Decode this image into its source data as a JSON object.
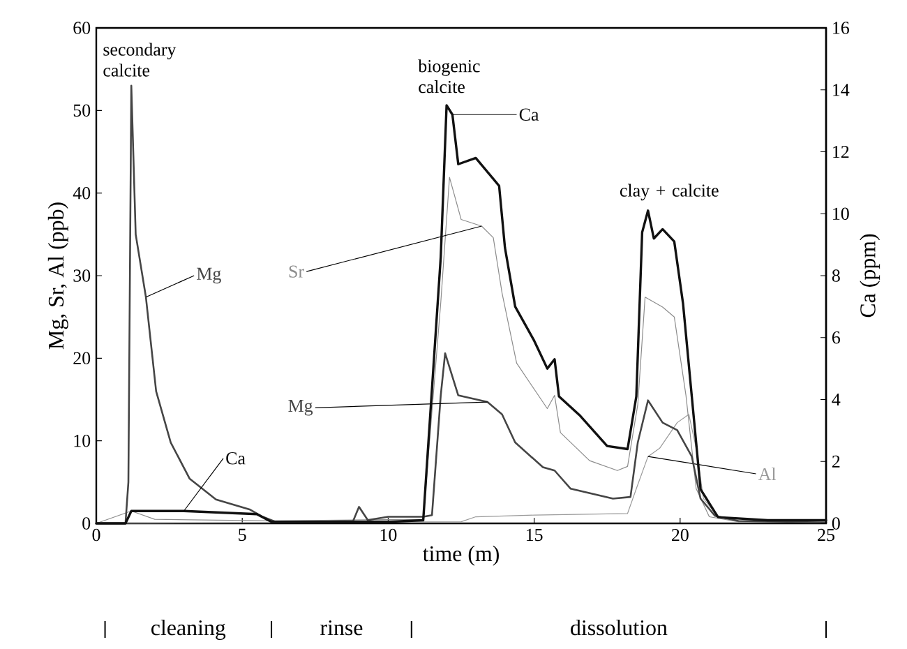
{
  "chart_data": {
    "type": "line",
    "xlabel": "time (m)",
    "ylabel": "Mg, Sr, Al (ppb)",
    "y2label": "Ca (ppm)",
    "xlim": [
      0,
      25
    ],
    "xticks": [
      0,
      5,
      10,
      15,
      20,
      25
    ],
    "ylim": [
      0,
      60
    ],
    "yticks": [
      0,
      10,
      20,
      30,
      40,
      50,
      60
    ],
    "y2lim": [
      0,
      16
    ],
    "y2ticks": [
      0,
      2,
      4,
      6,
      8,
      10,
      12,
      14,
      16
    ],
    "series": [
      {
        "name": "Sr",
        "color": "#8c8c8c",
        "x": [
          0,
          1.2,
          2,
          6,
          11.2,
          11.8,
          12.1,
          12.5,
          13.2,
          13.6,
          13.9,
          14.4,
          15.45,
          15.7,
          15.9,
          16.9,
          17.85,
          18.2,
          18.55,
          18.8,
          19.4,
          19.8,
          20.2,
          20.55,
          21.0,
          22,
          25
        ],
        "values": [
          0,
          1.5,
          0.5,
          0.3,
          0.5,
          26.7,
          41.9,
          36.8,
          36,
          34.6,
          27.9,
          19.4,
          13.9,
          15.5,
          11,
          7.6,
          6.4,
          6.9,
          14.4,
          27.4,
          26.2,
          25,
          15.5,
          4.2,
          0.8,
          0.2,
          0.1
        ]
      },
      {
        "name": "Al",
        "color": "#9a9a9a",
        "x": [
          0,
          12.5,
          13,
          15,
          18.2,
          18.5,
          18.9,
          19.3,
          19.9,
          20.3,
          20.55,
          20.8,
          21.3,
          22,
          25
        ],
        "values": [
          0,
          0.2,
          0.8,
          1,
          1.2,
          4.2,
          8.1,
          9.1,
          12.2,
          13.2,
          9.1,
          3.0,
          0.8,
          0.2,
          0.1
        ]
      },
      {
        "name": "Mg",
        "color": "#454545",
        "x": [
          0,
          1.0,
          1.1,
          1.2,
          1.35,
          1.7,
          2.05,
          2.55,
          3.2,
          4.1,
          5.25,
          5.7,
          6.2,
          8.8,
          9.0,
          9.3,
          10,
          11.2,
          11.5,
          11.8,
          11.95,
          12.4,
          13.4,
          13.9,
          14.35,
          15.3,
          15.7,
          16.25,
          17.7,
          18.3,
          18.55,
          18.9,
          19.4,
          19.9,
          20.4,
          20.7,
          21.2,
          22,
          25
        ],
        "values": [
          0,
          0,
          5,
          53,
          35,
          27.4,
          16,
          9.8,
          5.4,
          2.9,
          1.7,
          0.8,
          0.1,
          0.3,
          2,
          0.4,
          0.8,
          0.8,
          1,
          15.5,
          20.6,
          15.5,
          14.7,
          13.2,
          9.8,
          6.8,
          6.4,
          4.2,
          3.0,
          3.2,
          9.8,
          14.9,
          12.2,
          11.3,
          8.1,
          3.0,
          0.9,
          0.3,
          0.1
        ]
      },
      {
        "name": "Ca",
        "color": "#111111",
        "axis": "y2",
        "x": [
          0,
          1.0,
          1.2,
          1.5,
          3,
          5.5,
          6,
          8,
          10,
          11.2,
          11.8,
          12.0,
          12.2,
          12.4,
          13.0,
          13.8,
          14.0,
          14.35,
          15.0,
          15.45,
          15.7,
          15.85,
          16.55,
          17.5,
          18.2,
          18.5,
          18.7,
          18.9,
          19.1,
          19.4,
          19.8,
          20.1,
          20.4,
          20.7,
          21.3,
          23,
          25
        ],
        "values": [
          0,
          0,
          0.4,
          0.4,
          0.4,
          0.3,
          0.05,
          0.05,
          0.05,
          0.1,
          8.6,
          13.5,
          13.2,
          11.6,
          11.8,
          10.9,
          8.9,
          7.0,
          5.9,
          5.0,
          5.3,
          4.1,
          3.5,
          2.5,
          2.4,
          4.1,
          9.4,
          10.1,
          9.2,
          9.5,
          9.1,
          7.1,
          4.1,
          1.1,
          0.2,
          0.1,
          0.1
        ]
      }
    ],
    "annotations": [
      {
        "text": "secondary calcite",
        "x": 1.2,
        "y": 53
      },
      {
        "text": "biogenic calcite",
        "x": 12,
        "y": 51
      },
      {
        "text": "clay + calcite",
        "x": 18.9,
        "y": 38
      },
      "cleaning",
      "rinse",
      "dissolution"
    ]
  }
}
